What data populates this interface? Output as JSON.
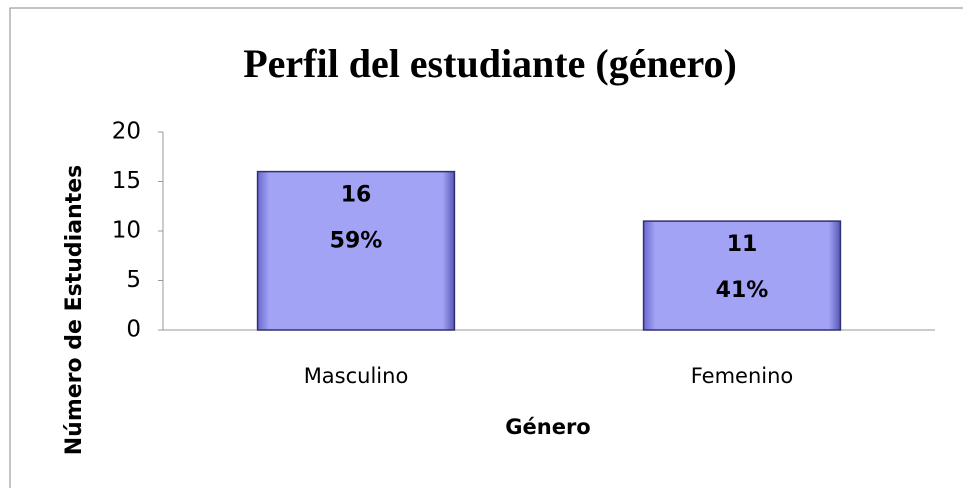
{
  "chart_data": {
    "type": "bar",
    "title": "Perfil del estudiante (género)",
    "x_label": "Género",
    "y_label": "Número de Estudiantes",
    "categories": [
      "Masculino",
      "Femenino"
    ],
    "values": [
      16,
      11
    ],
    "shares": [
      59,
      41
    ],
    "share_labels": [
      "59%",
      "41%"
    ],
    "color": "#a3a3f5",
    "ylim": [
      0,
      20
    ],
    "yticks": [
      0,
      5,
      10,
      15,
      20
    ],
    "grid": false
  }
}
